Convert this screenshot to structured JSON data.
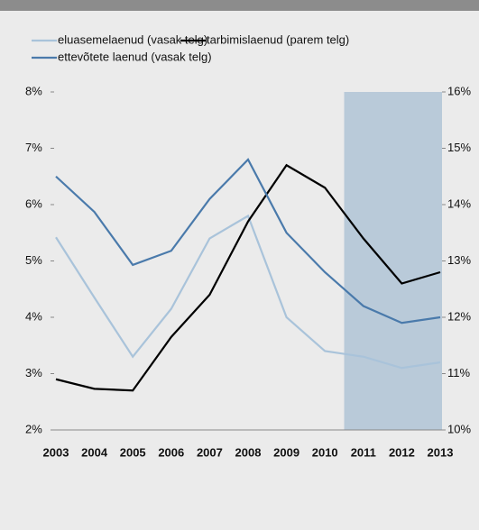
{
  "chart_data": {
    "type": "line",
    "categories": [
      "2003",
      "2004",
      "2005",
      "2006",
      "2007",
      "2008",
      "2009",
      "2010",
      "2011",
      "2012",
      "2013"
    ],
    "series": [
      {
        "name": "eluasemelaenud (vasak telg)",
        "color": "#a9c3da",
        "values": [
          5.42,
          4.35,
          3.3,
          4.15,
          5.4,
          5.8,
          4.0,
          3.4,
          3.3,
          3.1,
          3.2
        ]
      },
      {
        "name": "tarbimislaenud (parem telg)",
        "color": "#000000",
        "axis": "y2",
        "values": [
          10.9,
          10.73,
          10.7,
          11.65,
          12.4,
          13.7,
          14.7,
          14.3,
          13.4,
          12.6,
          12.8
        ]
      },
      {
        "name": "ettevõtete laenud (vasak telg)",
        "color": "#4a7aab",
        "values": [
          6.5,
          5.87,
          4.93,
          5.18,
          6.1,
          6.8,
          5.5,
          4.8,
          4.2,
          3.9,
          4.0
        ]
      }
    ],
    "ylim": [
      2,
      8
    ],
    "yticks": [
      {
        "value": 2,
        "label": "2%"
      },
      {
        "value": 3,
        "label": "3%"
      },
      {
        "value": 4,
        "label": "4%"
      },
      {
        "value": 5,
        "label": "5%"
      },
      {
        "value": 6,
        "label": "6%"
      },
      {
        "value": 7,
        "label": "7%"
      },
      {
        "value": 8,
        "label": "8%"
      }
    ],
    "y2lim": [
      10,
      16
    ],
    "y2ticks": [
      {
        "value": 10,
        "label": "10%"
      },
      {
        "value": 11,
        "label": "11%"
      },
      {
        "value": 12,
        "label": "12%"
      },
      {
        "value": 13,
        "label": "13%"
      },
      {
        "value": 14,
        "label": "14%"
      },
      {
        "value": 15,
        "label": "15%"
      },
      {
        "value": 16,
        "label": "16%"
      }
    ],
    "highlight_categories": [
      "2011",
      "2012",
      "2013"
    ],
    "highlight_color": "#b9cad9"
  }
}
